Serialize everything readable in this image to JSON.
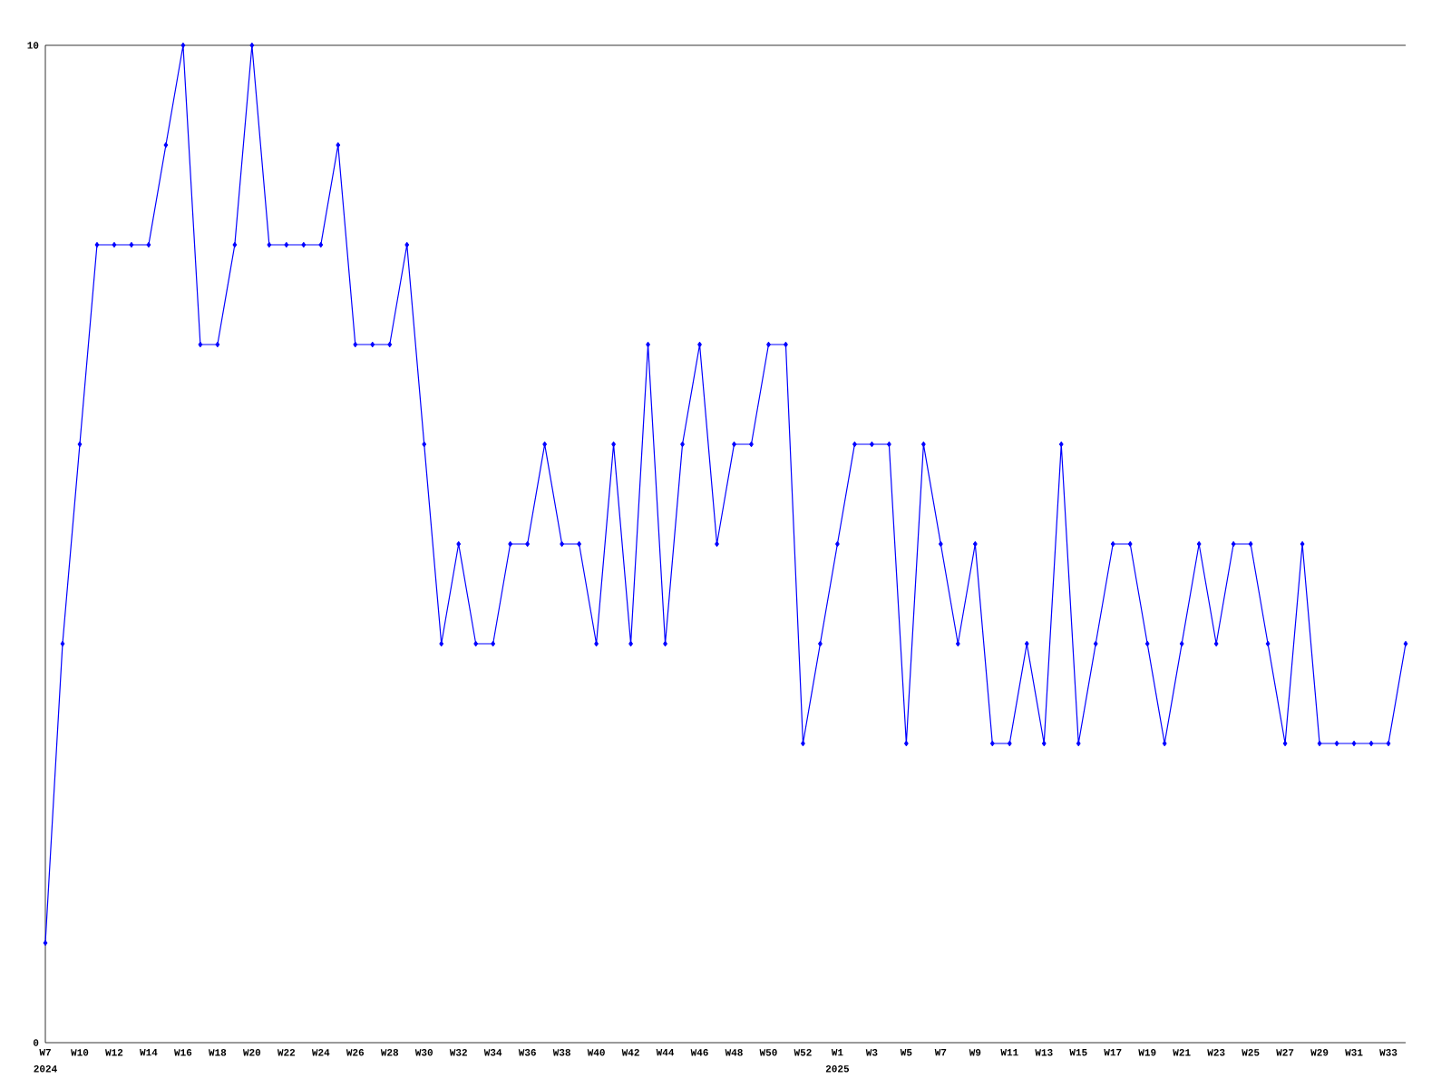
{
  "chart_data": {
    "type": "line",
    "categories": [
      "W7",
      null,
      "W10",
      null,
      "W12",
      null,
      "W14",
      null,
      "W16",
      null,
      "W18",
      null,
      "W20",
      null,
      "W22",
      null,
      "W24",
      null,
      "W26",
      null,
      "W28",
      null,
      "W30",
      null,
      "W32",
      null,
      "W34",
      null,
      "W36",
      null,
      "W38",
      null,
      "W40",
      null,
      "W42",
      null,
      "W44",
      null,
      "W46",
      null,
      "W48",
      null,
      "W50",
      null,
      "W52",
      null,
      "W1",
      null,
      "W3",
      null,
      "W5",
      null,
      "W7",
      null,
      "W9",
      null,
      "W11",
      null,
      "W13",
      null,
      "W15",
      null,
      "W17",
      null,
      "W19",
      null,
      "W21",
      null,
      "W23",
      null,
      "W25",
      null,
      "W27",
      null,
      "W29",
      null,
      "W31",
      null,
      "W33",
      null
    ],
    "values": [
      1,
      4,
      6,
      8,
      8,
      8,
      8,
      9,
      10,
      7,
      7,
      8,
      10,
      8,
      8,
      8,
      8,
      9,
      7,
      7,
      7,
      8,
      6,
      4,
      5,
      4,
      4,
      5,
      5,
      6,
      5,
      5,
      4,
      6,
      4,
      7,
      4,
      6,
      7,
      5,
      6,
      6,
      7,
      7,
      3,
      4,
      5,
      6,
      6,
      6,
      3,
      6,
      5,
      4,
      5,
      3,
      3,
      4,
      3,
      6,
      3,
      4,
      5,
      5,
      4,
      3,
      4,
      5,
      4,
      5,
      5,
      4,
      3,
      5,
      3,
      3,
      3,
      3,
      3,
      4
    ],
    "color": "#0000ff",
    "marker": "diamond",
    "line_style": "solid",
    "ylim": [
      0,
      10
    ],
    "yticks": [
      0,
      10
    ],
    "annotations": [
      "2024",
      "2025"
    ]
  }
}
